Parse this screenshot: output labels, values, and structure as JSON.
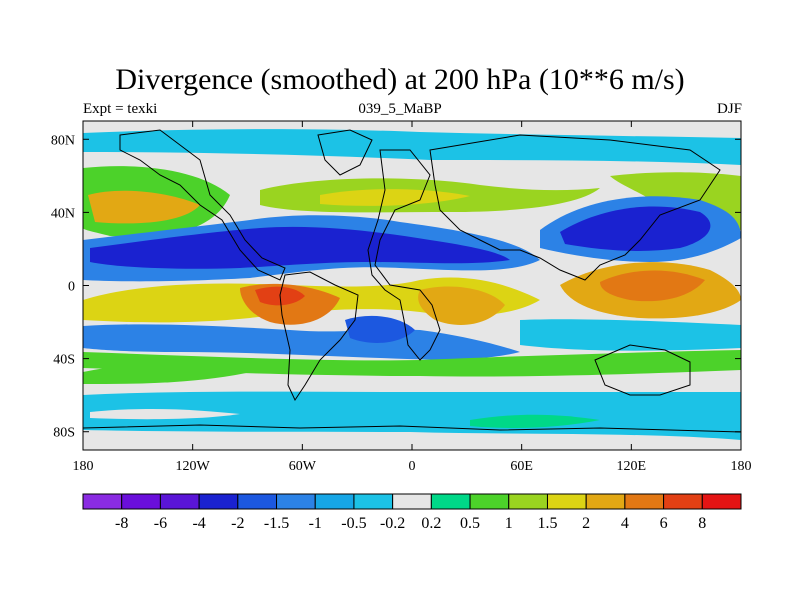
{
  "title": "Divergence (smoothed) at 200 hPa (10**6 m/s)",
  "left_label": "Expt = texki",
  "center_label": "039_5_MaBP",
  "right_label": "DJF",
  "lon_ticks": [
    {
      "label": "180",
      "lon": -180
    },
    {
      "label": "120W",
      "lon": -120
    },
    {
      "label": "60W",
      "lon": -60
    },
    {
      "label": "0",
      "lon": 0
    },
    {
      "label": "60E",
      "lon": 60
    },
    {
      "label": "120E",
      "lon": 120
    },
    {
      "label": "180",
      "lon": 180
    }
  ],
  "lat_ticks": [
    {
      "label": "80N",
      "lat": 80
    },
    {
      "label": "40N",
      "lat": 40
    },
    {
      "label": "0",
      "lat": 0
    },
    {
      "label": "40S",
      "lat": -40
    },
    {
      "label": "80S",
      "lat": -80
    }
  ],
  "colorbar": {
    "colors": [
      "#8a2be2",
      "#6a0fdb",
      "#5a15d6",
      "#1a22d0",
      "#1c58e0",
      "#2c82e6",
      "#16a6e6",
      "#1cc2e6",
      "#e6e6e6",
      "#00d888",
      "#4cd22a",
      "#9ad420",
      "#dcd414",
      "#e2a814",
      "#e27814",
      "#e24014",
      "#e41414"
    ],
    "labels": [
      "-8",
      "-6",
      "-4",
      "-2",
      "-1.5",
      "-1",
      "-0.5",
      "-0.2",
      "0.2",
      "0.5",
      "1",
      "1.5",
      "2",
      "4",
      "6",
      "8"
    ]
  },
  "chart_data": {
    "type": "heatmap",
    "title": "Divergence (smoothed) at 200 hPa (10**6 m/s)",
    "field": "200 hPa divergence, DJF",
    "units": "10**6 m/s",
    "xlim": [
      -180,
      180
    ],
    "ylim": [
      -90,
      90
    ],
    "levels": [
      -8,
      -6,
      -4,
      -2,
      -1.5,
      -1,
      -0.5,
      -0.2,
      0.2,
      0.5,
      1,
      1.5,
      2,
      4,
      6,
      8
    ],
    "features": [
      {
        "name": "tropical Pacific convergence band",
        "lon": -110,
        "lat": 15,
        "value": -3
      },
      {
        "name": "Atlantic/Africa convergence",
        "lon": -20,
        "lat": 20,
        "value": -3
      },
      {
        "name": "Asian convergence",
        "lon": 100,
        "lat": 35,
        "value": -3
      },
      {
        "name": "NW Pacific divergence",
        "lon": -165,
        "lat": 38,
        "value": 2.5
      },
      {
        "name": "South America divergence",
        "lon": -75,
        "lat": -3,
        "value": 5
      },
      {
        "name": "Africa divergence",
        "lon": 20,
        "lat": -5,
        "value": 3
      },
      {
        "name": "Maritime continent divergence",
        "lon": 130,
        "lat": 5,
        "value": 3.5
      },
      {
        "name": "Southern ocean band",
        "lon": 0,
        "lat": -65,
        "value": -0.5
      }
    ]
  }
}
